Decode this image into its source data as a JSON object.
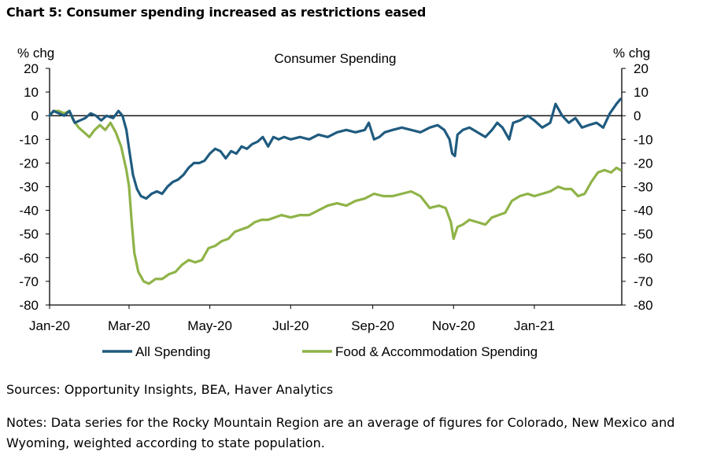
{
  "heading": "Chart 5: Consumer spending increased as restrictions eased",
  "sources": "Sources: Opportunity Insights, BEA, Haver Analytics",
  "notes": "Notes: Data series for the Rocky Mountain Region are an average of figures for Colorado, New Mexico and Wyoming, weighted according to state population.",
  "colors": {
    "all": "#1f5b7f",
    "food": "#8fb348"
  },
  "chart_data": {
    "type": "line",
    "title": "Consumer Spending",
    "ylabel_left": "% chg",
    "ylabel_right": "% chg",
    "ylim": [
      -80,
      20
    ],
    "yticks": [
      20,
      10,
      0,
      -10,
      -20,
      -30,
      -40,
      -50,
      -60,
      -70,
      -80
    ],
    "xlim": [
      "2020-01-13",
      "2021-03-20"
    ],
    "xticks": [
      {
        "date": "2020-01-13",
        "label": "Jan-20"
      },
      {
        "date": "2020-03-13",
        "label": "Mar-20"
      },
      {
        "date": "2020-05-13",
        "label": "May-20"
      },
      {
        "date": "2020-07-13",
        "label": "Jul-20"
      },
      {
        "date": "2020-09-13",
        "label": "Sep-20"
      },
      {
        "date": "2020-11-13",
        "label": "Nov-20"
      },
      {
        "date": "2021-01-13",
        "label": "Jan-21"
      }
    ],
    "legend": "bottom",
    "series": [
      {
        "name": "All Spending",
        "points": [
          [
            "2020-01-13",
            0
          ],
          [
            "2020-01-16",
            2
          ],
          [
            "2020-01-20",
            1
          ],
          [
            "2020-01-24",
            0
          ],
          [
            "2020-01-28",
            2
          ],
          [
            "2020-02-01",
            -3
          ],
          [
            "2020-02-05",
            -2
          ],
          [
            "2020-02-09",
            -1
          ],
          [
            "2020-02-13",
            1
          ],
          [
            "2020-02-17",
            0
          ],
          [
            "2020-02-21",
            -2
          ],
          [
            "2020-02-25",
            0
          ],
          [
            "2020-03-01",
            -1
          ],
          [
            "2020-03-05",
            2
          ],
          [
            "2020-03-08",
            0
          ],
          [
            "2020-03-11",
            -6
          ],
          [
            "2020-03-13",
            -14
          ],
          [
            "2020-03-16",
            -25
          ],
          [
            "2020-03-19",
            -31
          ],
          [
            "2020-03-22",
            -34
          ],
          [
            "2020-03-26",
            -35
          ],
          [
            "2020-03-30",
            -33
          ],
          [
            "2020-04-03",
            -32
          ],
          [
            "2020-04-07",
            -33
          ],
          [
            "2020-04-11",
            -30
          ],
          [
            "2020-04-15",
            -28
          ],
          [
            "2020-04-19",
            -27
          ],
          [
            "2020-04-23",
            -25
          ],
          [
            "2020-04-27",
            -22
          ],
          [
            "2020-05-01",
            -20
          ],
          [
            "2020-05-05",
            -20
          ],
          [
            "2020-05-09",
            -19
          ],
          [
            "2020-05-13",
            -16
          ],
          [
            "2020-05-17",
            -14
          ],
          [
            "2020-05-21",
            -15
          ],
          [
            "2020-05-25",
            -18
          ],
          [
            "2020-05-29",
            -15
          ],
          [
            "2020-06-02",
            -16
          ],
          [
            "2020-06-06",
            -13
          ],
          [
            "2020-06-10",
            -14
          ],
          [
            "2020-06-14",
            -12
          ],
          [
            "2020-06-18",
            -11
          ],
          [
            "2020-06-22",
            -9
          ],
          [
            "2020-06-26",
            -13
          ],
          [
            "2020-06-30",
            -9
          ],
          [
            "2020-07-04",
            -10
          ],
          [
            "2020-07-08",
            -9
          ],
          [
            "2020-07-13",
            -10
          ],
          [
            "2020-07-20",
            -9
          ],
          [
            "2020-07-27",
            -10
          ],
          [
            "2020-08-03",
            -8
          ],
          [
            "2020-08-10",
            -9
          ],
          [
            "2020-08-17",
            -7
          ],
          [
            "2020-08-24",
            -6
          ],
          [
            "2020-08-31",
            -7
          ],
          [
            "2020-09-07",
            -6
          ],
          [
            "2020-09-10",
            -3
          ],
          [
            "2020-09-14",
            -10
          ],
          [
            "2020-09-18",
            -9
          ],
          [
            "2020-09-22",
            -7
          ],
          [
            "2020-09-28",
            -6
          ],
          [
            "2020-10-05",
            -5
          ],
          [
            "2020-10-12",
            -6
          ],
          [
            "2020-10-19",
            -7
          ],
          [
            "2020-10-26",
            -5
          ],
          [
            "2020-11-01",
            -4
          ],
          [
            "2020-11-06",
            -6
          ],
          [
            "2020-11-10",
            -10
          ],
          [
            "2020-11-12",
            -16
          ],
          [
            "2020-11-14",
            -17
          ],
          [
            "2020-11-16",
            -8
          ],
          [
            "2020-11-20",
            -6
          ],
          [
            "2020-11-25",
            -5
          ],
          [
            "2020-12-01",
            -7
          ],
          [
            "2020-12-07",
            -9
          ],
          [
            "2020-12-12",
            -6
          ],
          [
            "2020-12-16",
            -3
          ],
          [
            "2020-12-20",
            -5
          ],
          [
            "2020-12-25",
            -10
          ],
          [
            "2020-12-28",
            -3
          ],
          [
            "2021-01-02",
            -2
          ],
          [
            "2021-01-08",
            0
          ],
          [
            "2021-01-13",
            -2
          ],
          [
            "2021-01-19",
            -5
          ],
          [
            "2021-01-25",
            -3
          ],
          [
            "2021-01-29",
            5
          ],
          [
            "2021-02-03",
            0
          ],
          [
            "2021-02-08",
            -3
          ],
          [
            "2021-02-13",
            -1
          ],
          [
            "2021-02-18",
            -5
          ],
          [
            "2021-02-23",
            -4
          ],
          [
            "2021-03-01",
            -3
          ],
          [
            "2021-03-06",
            -5
          ],
          [
            "2021-03-11",
            1
          ],
          [
            "2021-03-16",
            5
          ],
          [
            "2021-03-19",
            7
          ]
        ]
      },
      {
        "name": "Food & Accommodation Spending",
        "points": [
          [
            "2020-01-13",
            0
          ],
          [
            "2020-01-16",
            2
          ],
          [
            "2020-01-20",
            2
          ],
          [
            "2020-01-24",
            1
          ],
          [
            "2020-01-28",
            2
          ],
          [
            "2020-01-31",
            -2
          ],
          [
            "2020-02-04",
            -5
          ],
          [
            "2020-02-08",
            -7
          ],
          [
            "2020-02-12",
            -9
          ],
          [
            "2020-02-16",
            -6
          ],
          [
            "2020-02-20",
            -4
          ],
          [
            "2020-02-24",
            -6
          ],
          [
            "2020-02-28",
            -3
          ],
          [
            "2020-03-03",
            -7
          ],
          [
            "2020-03-07",
            -13
          ],
          [
            "2020-03-11",
            -23
          ],
          [
            "2020-03-13",
            -30
          ],
          [
            "2020-03-15",
            -45
          ],
          [
            "2020-03-17",
            -58
          ],
          [
            "2020-03-20",
            -66
          ],
          [
            "2020-03-24",
            -70
          ],
          [
            "2020-03-28",
            -71
          ],
          [
            "2020-04-02",
            -69
          ],
          [
            "2020-04-07",
            -69
          ],
          [
            "2020-04-12",
            -67
          ],
          [
            "2020-04-17",
            -66
          ],
          [
            "2020-04-22",
            -63
          ],
          [
            "2020-04-27",
            -61
          ],
          [
            "2020-05-02",
            -62
          ],
          [
            "2020-05-07",
            -61
          ],
          [
            "2020-05-12",
            -56
          ],
          [
            "2020-05-17",
            -55
          ],
          [
            "2020-05-22",
            -53
          ],
          [
            "2020-05-27",
            -52
          ],
          [
            "2020-06-01",
            -49
          ],
          [
            "2020-06-06",
            -48
          ],
          [
            "2020-06-11",
            -47
          ],
          [
            "2020-06-16",
            -45
          ],
          [
            "2020-06-21",
            -44
          ],
          [
            "2020-06-26",
            -44
          ],
          [
            "2020-07-01",
            -43
          ],
          [
            "2020-07-06",
            -42
          ],
          [
            "2020-07-13",
            -43
          ],
          [
            "2020-07-20",
            -42
          ],
          [
            "2020-07-27",
            -42
          ],
          [
            "2020-08-03",
            -40
          ],
          [
            "2020-08-10",
            -38
          ],
          [
            "2020-08-17",
            -37
          ],
          [
            "2020-08-24",
            -38
          ],
          [
            "2020-08-31",
            -36
          ],
          [
            "2020-09-07",
            -35
          ],
          [
            "2020-09-14",
            -33
          ],
          [
            "2020-09-21",
            -34
          ],
          [
            "2020-09-28",
            -34
          ],
          [
            "2020-10-05",
            -33
          ],
          [
            "2020-10-12",
            -32
          ],
          [
            "2020-10-19",
            -34
          ],
          [
            "2020-10-26",
            -39
          ],
          [
            "2020-11-02",
            -38
          ],
          [
            "2020-11-07",
            -39
          ],
          [
            "2020-11-11",
            -45
          ],
          [
            "2020-11-13",
            -52
          ],
          [
            "2020-11-16",
            -47
          ],
          [
            "2020-11-20",
            -46
          ],
          [
            "2020-11-25",
            -44
          ],
          [
            "2020-12-01",
            -45
          ],
          [
            "2020-12-07",
            -46
          ],
          [
            "2020-12-12",
            -43
          ],
          [
            "2020-12-17",
            -42
          ],
          [
            "2020-12-22",
            -41
          ],
          [
            "2020-12-27",
            -36
          ],
          [
            "2021-01-02",
            -34
          ],
          [
            "2021-01-08",
            -33
          ],
          [
            "2021-01-13",
            -34
          ],
          [
            "2021-01-19",
            -33
          ],
          [
            "2021-01-25",
            -32
          ],
          [
            "2021-01-31",
            -30
          ],
          [
            "2021-02-05",
            -31
          ],
          [
            "2021-02-10",
            -31
          ],
          [
            "2021-02-15",
            -34
          ],
          [
            "2021-02-20",
            -33
          ],
          [
            "2021-02-25",
            -28
          ],
          [
            "2021-03-02",
            -24
          ],
          [
            "2021-03-07",
            -23
          ],
          [
            "2021-03-12",
            -24
          ],
          [
            "2021-03-16",
            -22
          ],
          [
            "2021-03-19",
            -23
          ]
        ]
      }
    ]
  }
}
